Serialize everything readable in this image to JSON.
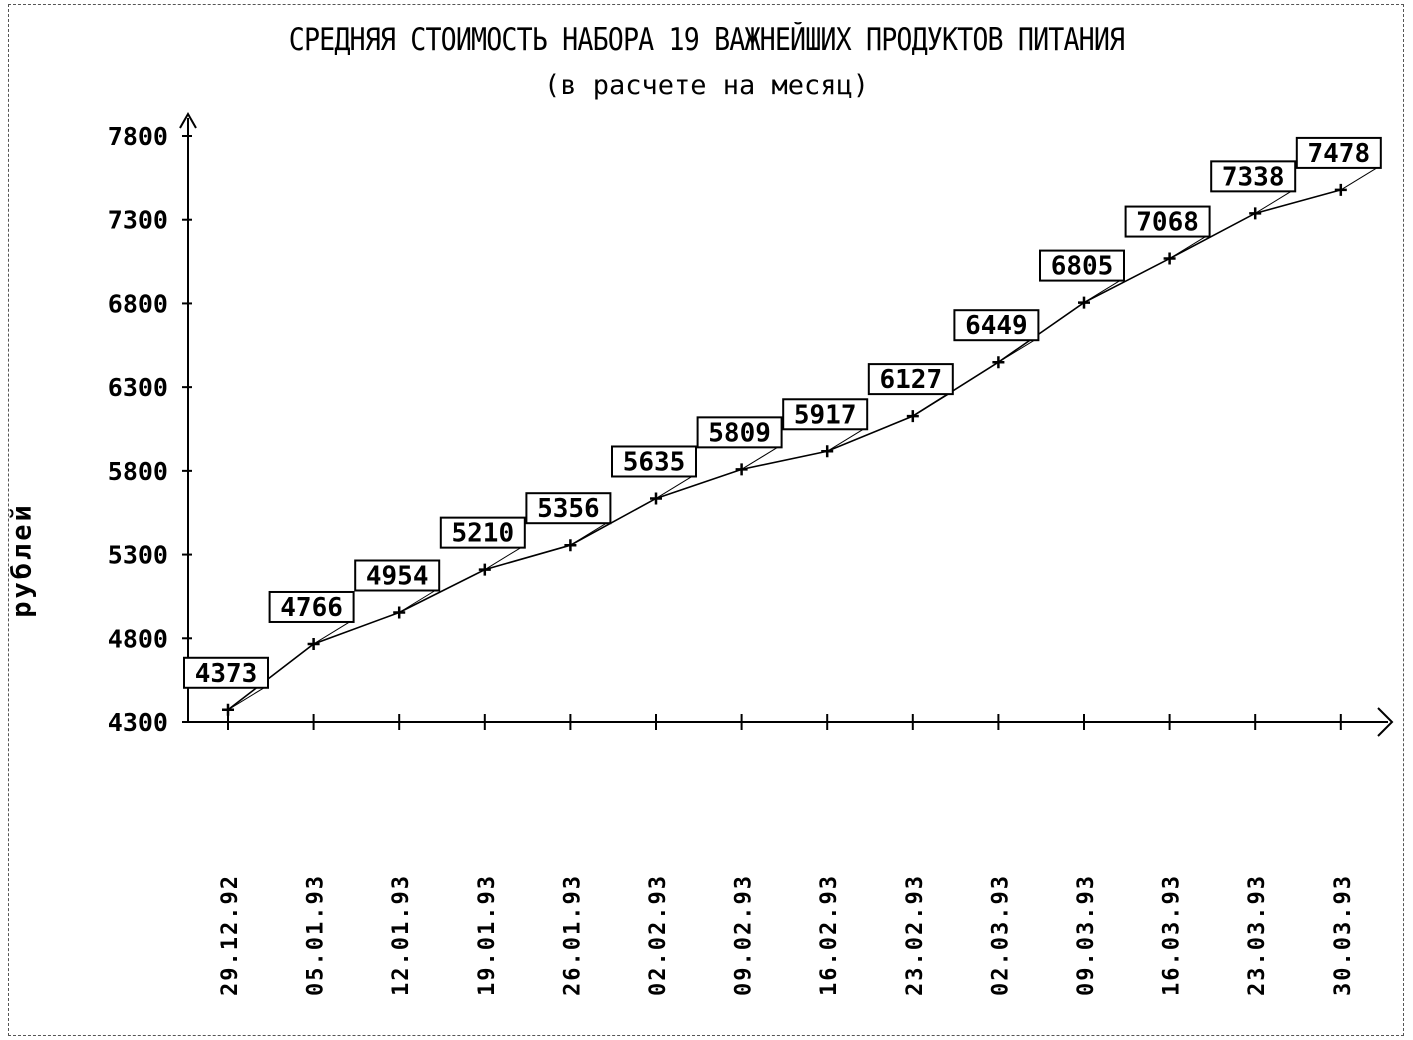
{
  "chart_data": {
    "type": "line",
    "title": "СРЕДНЯЯ СТОИМОСТЬ НАБОРА 19 ВАЖНЕЙШИХ ПРОДУКТОВ ПИТАНИЯ",
    "subtitle": "(в расчете на месяц)",
    "xlabel": "",
    "ylabel": "рублей",
    "ylim": [
      4300,
      7800
    ],
    "yticks": [
      4300,
      4800,
      5300,
      5800,
      6300,
      6800,
      7300,
      7800
    ],
    "categories": [
      "29.12.92",
      "05.01.93",
      "12.01.93",
      "19.01.93",
      "26.01.93",
      "02.02.93",
      "09.02.93",
      "16.02.93",
      "23.02.93",
      "02.03.93",
      "09.03.93",
      "16.03.93",
      "23.03.93",
      "30.03.93"
    ],
    "series": [
      {
        "values": [
          4373,
          4766,
          4954,
          5210,
          5356,
          5635,
          5809,
          5917,
          6127,
          6449,
          6805,
          7068,
          7338,
          7478
        ]
      }
    ],
    "data_labels": [
      "4373",
      "4766",
      "4954",
      "5210",
      "5356",
      "5635",
      "5809",
      "5917",
      "6127",
      "6449",
      "6805",
      "7068",
      "7338",
      "7478"
    ],
    "grid": false,
    "legend": "none"
  }
}
